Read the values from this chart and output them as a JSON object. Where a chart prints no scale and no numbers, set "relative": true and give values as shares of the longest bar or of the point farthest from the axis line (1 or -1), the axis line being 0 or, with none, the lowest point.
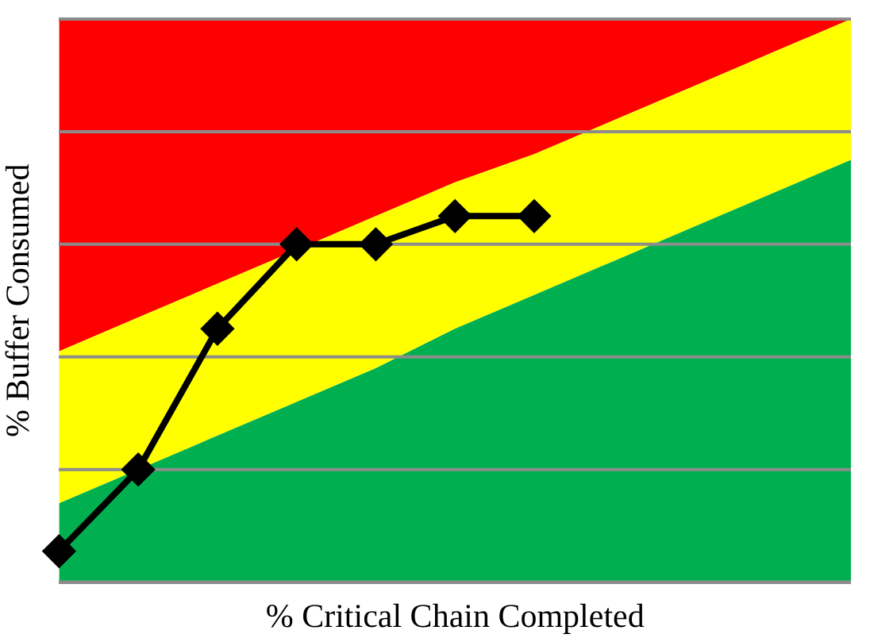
{
  "chart_data": {
    "type": "area",
    "relative": true,
    "xlabel": "% Critical Chain Completed",
    "ylabel": "% Buffer Consumed",
    "grid": "y",
    "legend": false,
    "categories": [
      null,
      null,
      null,
      null,
      null,
      null,
      null,
      null,
      null,
      null,
      null
    ],
    "series": [
      {
        "color": "#00b050",
        "values": [
          0.14,
          0.2,
          0.26,
          0.32,
          0.38,
          0.45,
          0.51,
          0.57,
          0.63,
          0.69,
          0.75
        ]
      },
      {
        "color": "#ffff00",
        "values": [
          0.41,
          0.47,
          0.53,
          0.59,
          0.65,
          0.71,
          0.76,
          0.82,
          0.88,
          0.94,
          1
        ]
      },
      {
        "color": "#ff0000",
        "values": [
          1,
          1,
          1,
          1,
          1,
          1,
          1,
          1,
          1,
          1,
          1
        ]
      },
      {
        "type": "line",
        "color": "#000000",
        "marker": "diamond",
        "line_style": "solid",
        "values": [
          0.055,
          0.2,
          0.45,
          0.6,
          0.6,
          0.65,
          0.65,
          null,
          null,
          null,
          null
        ]
      }
    ]
  }
}
